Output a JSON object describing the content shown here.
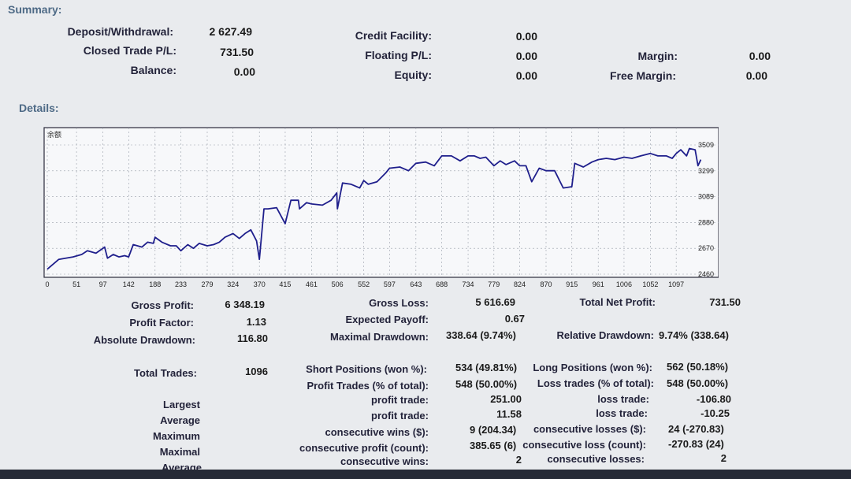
{
  "summary": {
    "title": "Summary:",
    "deposit_label": "Deposit/Withdrawal:",
    "deposit_value": "2 627.49",
    "closed_label": "Closed Trade P/L:",
    "closed_value": "731.50",
    "balance_label": "Balance:",
    "balance_value": "0.00",
    "credit_label": "Credit Facility:",
    "credit_value": "0.00",
    "floating_label": "Floating P/L:",
    "floating_value": "0.00",
    "equity_label": "Equity:",
    "equity_value": "0.00",
    "margin_label": "Margin:",
    "margin_value": "0.00",
    "free_margin_label": "Free Margin:",
    "free_margin_value": "0.00"
  },
  "details": {
    "title": "Details:",
    "stats": {
      "gross_profit_label": "Gross Profit:",
      "gross_profit_value": "6 348.19",
      "gross_loss_label": "Gross Loss:",
      "gross_loss_value": "5 616.69",
      "total_net_label": "Total Net Profit:",
      "total_net_value": "731.50",
      "profit_factor_label": "Profit Factor:",
      "profit_factor_value": "1.13",
      "expected_payoff_label": "Expected Payoff:",
      "expected_payoff_value": "0.67",
      "absolute_dd_label": "Absolute Drawdown:",
      "absolute_dd_value": "116.80",
      "maximal_dd_label": "Maximal Drawdown:",
      "maximal_dd_value": "338.64 (9.74%)",
      "relative_dd_label": "Relative Drawdown:",
      "relative_dd_value": "9.74% (338.64)",
      "total_trades_label": "Total Trades:",
      "total_trades_value": "1096",
      "short_label": "Short Positions (won %):",
      "short_value": "534 (49.81%)",
      "long_label": "Long Positions (won %):",
      "long_value": "562 (50.18%)",
      "profit_trades_label": "Profit Trades (% of total):",
      "profit_trades_value": "548 (50.00%)",
      "loss_trades_label": "Loss trades (% of total):",
      "loss_trades_value": "548 (50.00%)",
      "largest_label": "Largest",
      "largest_profit_label": "profit trade:",
      "largest_profit_value": "251.00",
      "largest_loss_label": "loss trade:",
      "largest_loss_value": "-106.80",
      "average_label": "Average",
      "average_profit_label": "profit trade:",
      "average_profit_value": "11.58",
      "average_loss_label": "loss trade:",
      "average_loss_value": "-10.25",
      "maximum_label": "Maximum",
      "max_cons_wins_label": "consecutive wins ($):",
      "max_cons_wins_value": "9 (204.34)",
      "max_cons_losses_label": "consecutive losses ($):",
      "max_cons_losses_value": "24 (-270.83)",
      "maximal_label": "Maximal",
      "maximal_cons_profit_label": "consecutive profit (count):",
      "maximal_cons_profit_value": "385.65 (6)",
      "maximal_cons_loss_label": "consecutive loss (count):",
      "maximal_cons_loss_value": "-270.83 (24)",
      "average2_label": "Average",
      "avg_cons_wins_label": "consecutive wins:",
      "avg_cons_wins_value": "2",
      "avg_cons_losses_label": "consecutive losses:",
      "avg_cons_losses_value": "2"
    }
  },
  "chart_data": {
    "type": "line",
    "title": "余额",
    "y_ticks": [
      2460,
      2670,
      2880,
      3089,
      3299,
      3509
    ],
    "ylim": [
      2460,
      3509
    ],
    "x_ticks": [
      0,
      51,
      97,
      142,
      188,
      233,
      279,
      324,
      370,
      415,
      461,
      506,
      552,
      597,
      643,
      688,
      734,
      779,
      824,
      870,
      915,
      961,
      1006,
      1052,
      1097
    ],
    "xlim": [
      0,
      1160
    ],
    "grid": true,
    "line_color": "#1f1f8c",
    "series": [
      {
        "x": [
          0,
          20,
          45,
          60,
          70,
          85,
          100,
          105,
          115,
          125,
          135,
          142,
          150,
          165,
          175,
          185,
          188,
          200,
          215,
          225,
          233,
          245,
          255,
          265,
          279,
          290,
          300,
          310,
          324,
          335,
          345,
          355,
          365,
          370,
          378,
          385,
          400,
          415,
          425,
          438,
          440,
          452,
          461,
          480,
          495,
          505,
          506,
          515,
          530,
          545,
          552,
          560,
          575,
          590,
          597,
          615,
          630,
          643,
          660,
          675,
          688,
          705,
          720,
          734,
          745,
          755,
          765,
          779,
          790,
          800,
          815,
          824,
          835,
          845,
          858,
          870,
          885,
          900,
          915,
          920,
          935,
          950,
          961,
          975,
          990,
          1006,
          1020,
          1035,
          1052,
          1065,
          1080,
          1090,
          1097,
          1105,
          1115,
          1120,
          1130,
          1135,
          1140
        ],
        "y": [
          2500,
          2580,
          2600,
          2620,
          2650,
          2630,
          2680,
          2590,
          2620,
          2600,
          2610,
          2600,
          2700,
          2680,
          2720,
          2710,
          2760,
          2720,
          2690,
          2690,
          2650,
          2700,
          2670,
          2710,
          2690,
          2700,
          2720,
          2760,
          2790,
          2750,
          2790,
          2820,
          2730,
          2580,
          2990,
          2990,
          3000,
          2870,
          3060,
          3060,
          2990,
          3040,
          3030,
          3020,
          3060,
          3120,
          2990,
          3200,
          3190,
          3160,
          3220,
          3190,
          3210,
          3280,
          3320,
          3330,
          3300,
          3360,
          3370,
          3340,
          3420,
          3420,
          3380,
          3420,
          3420,
          3400,
          3410,
          3340,
          3380,
          3350,
          3380,
          3340,
          3340,
          3210,
          3320,
          3300,
          3300,
          3160,
          3170,
          3360,
          3330,
          3370,
          3390,
          3400,
          3390,
          3410,
          3400,
          3420,
          3440,
          3420,
          3420,
          3400,
          3440,
          3470,
          3420,
          3480,
          3470,
          3340,
          3390
        ]
      }
    ]
  }
}
